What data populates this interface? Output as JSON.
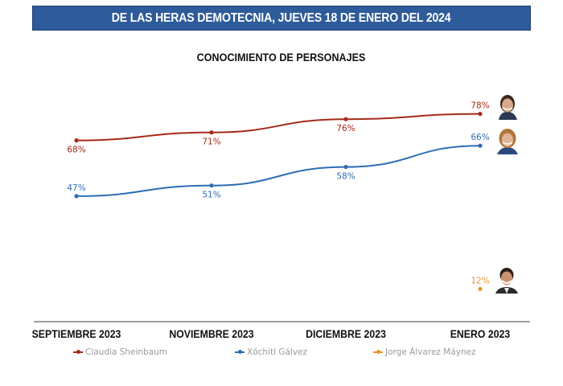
{
  "banner": {
    "text": "DE LAS HERAS DEMOTECNIA, JUEVES 18 DE ENERO DEL 2024"
  },
  "chart_data": {
    "type": "line",
    "title": "CONOCIMIENTO DE PERSONAJES",
    "categories": [
      "SEPTIEMBRE 2023",
      "NOVIEMBRE 2023",
      "DICIEMBRE 2023",
      "ENERO 2023"
    ],
    "xlabel": "",
    "ylabel": "",
    "ylim": [
      0,
      100
    ],
    "grid": false,
    "legend_position": "bottom",
    "value_suffix": "%",
    "series": [
      {
        "name": "Claudia Sheinbaum",
        "color": "#A52A1A",
        "values": [
          68,
          71,
          76,
          78
        ],
        "label_positions": [
          "below",
          "below",
          "below",
          "above"
        ]
      },
      {
        "name": "Xóchitl Gálvez",
        "color": "#2E6DB4",
        "values": [
          47,
          51,
          58,
          66
        ],
        "label_positions": [
          "above",
          "below",
          "below",
          "above"
        ]
      },
      {
        "name": "Jorge Álvarez Máynez",
        "color": "#E8962A",
        "values": [
          null,
          null,
          null,
          12
        ],
        "label_positions": [
          null,
          null,
          null,
          "above"
        ]
      }
    ]
  },
  "photos": [
    {
      "name": "Claudia Sheinbaum",
      "icon": "person-photo-icon"
    },
    {
      "name": "Xóchitl Gálvez",
      "icon": "person-photo-icon"
    },
    {
      "name": "Jorge Álvarez Máynez",
      "icon": "person-photo-icon"
    }
  ]
}
